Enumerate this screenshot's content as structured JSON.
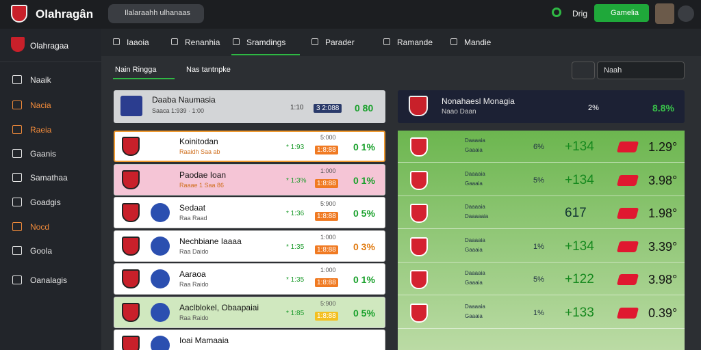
{
  "header": {
    "brand": "Olahragân",
    "search": "Ilalaraahh ulhanaas",
    "user": "Drig",
    "button": "Gamelia"
  },
  "sidebar": {
    "brand": "Olahragaa",
    "items": [
      "Naaik",
      "Nacia",
      "Raeia",
      "Gaanis",
      "Samathaa",
      "Goadgis",
      "Nocd",
      "Goola",
      "Oanalagis"
    ]
  },
  "tabs": [
    "Iaaoia",
    "Renanhia",
    "Sramdings",
    "Parader",
    "Ramande",
    "Mandie"
  ],
  "filters": {
    "league": "Nain Ringga",
    "type": "Nas tantnpke",
    "search": "Naah"
  },
  "left_panel": {
    "header": {
      "name": "Daaba Naumasia",
      "sub": "Saaca 1:939 · 1:00",
      "odd": "1:10",
      "badge": "3 2:088",
      "result": "0 80"
    },
    "rows": [
      {
        "name": "Koinitodan",
        "sub": "Raaidh Saa ab",
        "odd": "* 1:93",
        "top": "5:000",
        "badge": "1:8:88",
        "result": "0 1%"
      },
      {
        "name": "Paodae Ioan",
        "sub": "Raaae 1 Saa 86",
        "odd": "* 1:3%",
        "top": "1:000",
        "badge": "1:8:88",
        "result": "0 1%"
      },
      {
        "name": "Sedaat",
        "sub": "Raa Raad",
        "odd": "* 1:36",
        "top": "5:900",
        "badge": "1:8:88",
        "result": "0 5%"
      },
      {
        "name": "Nechbiane Iaaaa",
        "sub": "Raa Daido",
        "odd": "* 1:35",
        "top": "1:000",
        "badge": "1:8:88",
        "result": "0 3%"
      },
      {
        "name": "Aaraoa",
        "sub": "Raa Raido",
        "odd": "* 1:35",
        "top": "1:000",
        "badge": "1:8:88",
        "result": "0 1%"
      },
      {
        "name": "Aaclblokel, Obaapaiai",
        "sub": "Raa Raido",
        "odd": "* 1:85",
        "top": "5:900",
        "badge": "1:8:88",
        "result": "0 5%"
      },
      {
        "name": "Ioai Mamaaia",
        "sub": "",
        "odd": "",
        "top": "",
        "badge": "",
        "result": ""
      }
    ]
  },
  "right_panel": {
    "header": {
      "name": "Nonahaesl Monagia",
      "sub": "Naao Daan",
      "pct": "2%",
      "result": "8.8%"
    },
    "rows": [
      {
        "label": "Daaaaia",
        "sub": "Gaaaia",
        "pct": "6%",
        "value": "+134",
        "odd": "1.29°"
      },
      {
        "label": "Daaaaia",
        "sub": "Gaaaia",
        "pct": "5%",
        "value": "+134",
        "odd": "3.98°"
      },
      {
        "label": "Daaaaia",
        "sub": "Daaaaaia",
        "pct": "",
        "value": "617",
        "odd": "1.98°"
      },
      {
        "label": "Daaaaia",
        "sub": "Gaaaia",
        "pct": "1%",
        "value": "+134",
        "odd": "3.39°"
      },
      {
        "label": "Daaaaia",
        "sub": "Gaaaia",
        "pct": "5%",
        "value": "+122",
        "odd": "3.98°"
      },
      {
        "label": "Daaaaia",
        "sub": "Gaaaia",
        "pct": "1%",
        "value": "+133",
        "odd": "0.39°"
      }
    ]
  }
}
